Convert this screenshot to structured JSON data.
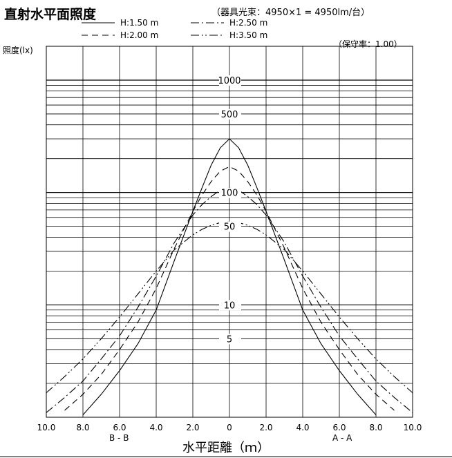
{
  "chart_data": {
    "type": "line",
    "title": "直射水平面照度",
    "subtitle": "（器具光束：4950×1 = 4950lm/台）",
    "maintenance": "（保守率：1.00）",
    "ylabel": "照度(lx)",
    "xlabel": "水平距離（ｍ）",
    "x_left_label": "B - B",
    "x_right_label": "A - A",
    "x_ticks": [
      "10.0",
      "8.0",
      "6.0",
      "4.0",
      "2.0",
      "0",
      "2.0",
      "4.0",
      "6.0",
      "8.0",
      "10.0"
    ],
    "y_scale": "log",
    "ylim": [
      1,
      2000
    ],
    "y_tick_labels": [
      "1000",
      "500",
      "100",
      "50",
      "10",
      "5"
    ],
    "y_tick_values": [
      1000,
      500,
      100,
      50,
      10,
      5
    ],
    "xlim": [
      -10,
      10
    ],
    "grid": true,
    "legend_position": "top",
    "series": [
      {
        "name": "H:1.50 m",
        "dash": "none",
        "x": [
          0,
          0.5,
          1.0,
          1.5,
          2.0,
          3.0,
          4.0,
          5.0,
          6.0,
          7.0,
          8.0,
          9.0
        ],
        "y": [
          300,
          250,
          175,
          110,
          68,
          25,
          9,
          4.5,
          2.6,
          1.6,
          1.05,
          0.55
        ]
      },
      {
        "name": "H:2.00 m",
        "dash": "9 6",
        "x": [
          0,
          0.5,
          1.0,
          1.5,
          2.0,
          3.0,
          4.0,
          5.0,
          6.0,
          7.0,
          8.0,
          9.0,
          10.0
        ],
        "y": [
          170,
          155,
          125,
          95,
          68,
          32,
          14,
          7,
          4.0,
          2.4,
          1.6,
          1.15,
          0.85
        ]
      },
      {
        "name": "H:2.50 m",
        "dash": "12 4 2 4",
        "x": [
          0,
          0.5,
          1.0,
          1.5,
          2.0,
          3.0,
          4.0,
          5.0,
          6.0,
          7.0,
          8.0,
          9.0,
          10.0
        ],
        "y": [
          110,
          105,
          92,
          78,
          63,
          36,
          18,
          9.5,
          5.3,
          3.3,
          2.1,
          1.5,
          1.1
        ]
      },
      {
        "name": "H:3.50 m",
        "dash": "12 4 2 3 2 4",
        "x": [
          0,
          0.5,
          1.0,
          1.5,
          2.0,
          3.0,
          4.0,
          5.0,
          6.0,
          7.0,
          8.0,
          9.0,
          10.0
        ],
        "y": [
          55,
          54,
          51,
          47,
          42,
          31,
          20,
          12.5,
          7.8,
          5.0,
          3.3,
          2.3,
          1.65
        ]
      }
    ]
  }
}
